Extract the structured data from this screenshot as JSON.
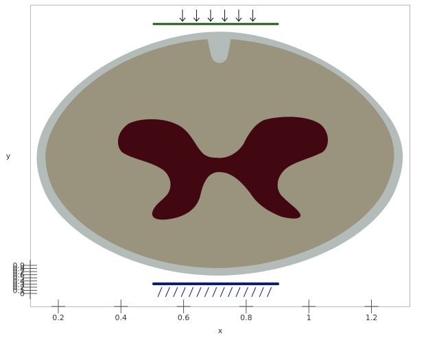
{
  "figure": {
    "xlabel": "x",
    "ylabel": "y",
    "x_ticks": [
      "0.2",
      "0.4",
      "0.6",
      "0.8",
      "1",
      "1.2"
    ],
    "y_ticks": [
      "0",
      "0.1",
      "0.2",
      "0.3",
      "0.4",
      "0.5",
      "0.6",
      "0.7",
      "0.8",
      "0.9"
    ]
  },
  "colors": {
    "frame": "#b8b8b8",
    "cord_outer": "#b3bcb9",
    "cord_inner": "#9a947e",
    "grey_matter": "#420812",
    "top_plate": "#1e5a1a",
    "bottom_plate": "#0d1f7a",
    "hatch": "#0d1f7a",
    "arrows": "#222222"
  },
  "icons": {
    "load_arrows": "down-arrow-icon",
    "support_hatch": "fixed-support-hatch"
  }
}
